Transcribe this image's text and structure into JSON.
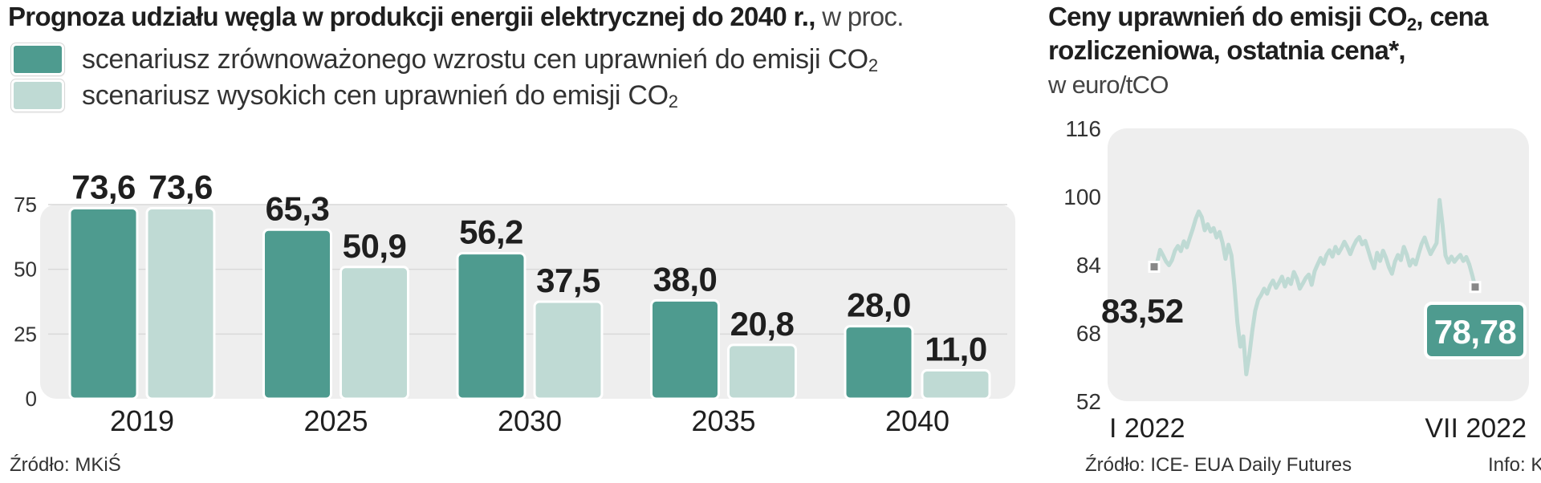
{
  "left_panel": {
    "title_bold": "Prognoza udziału węgla w produkcji energii elektrycznej do 2040 r.,",
    "title_unit": " w proc.",
    "source": "Źródło: MKiŚ"
  },
  "right_panel": {
    "title_line1_a": "Ceny uprawnień do emisji CO",
    "title_line1_sub": "2",
    "title_line1_b": ", cena",
    "title_line2": "rozliczeniowa, ostatnia cena*,",
    "unit": "w euro/tCO",
    "source": "Źródło: ICE- EUA Daily Futures",
    "credit": "Info: K"
  },
  "colors": {
    "series_dark": "#4e9b8f",
    "series_light": "#bfdad4",
    "plot_bg": "#eeeeee",
    "line_color": "#bfdad4",
    "last_label_bg": "#4e9b8f"
  },
  "chart_data": [
    {
      "type": "bar",
      "categories": [
        "2019",
        "2025",
        "2030",
        "2035",
        "2040"
      ],
      "series": [
        {
          "name": "scenariusz zrównoważonego wzrostu cen uprawnień do emisji CO2",
          "values": [
            73.6,
            65.3,
            56.2,
            38.0,
            28.0
          ],
          "labels": [
            "73,6",
            "65,3",
            "56,2",
            "38,0",
            "28,0"
          ]
        },
        {
          "name": "scenariusz wysokich cen uprawnień do emisji CO2",
          "values": [
            73.6,
            50.9,
            37.5,
            20.8,
            11.0
          ],
          "labels": [
            "73,6",
            "50,9",
            "37,5",
            "20,8",
            "11,0"
          ]
        }
      ],
      "legend": [
        {
          "text": "scenariusz zrównoważonego wzrostu cen uprawnień do emisji CO",
          "sub": "2"
        },
        {
          "text": "scenariusz wysokich cen uprawnień do emisji CO",
          "sub": "2"
        }
      ],
      "yticks": [
        "0",
        "25",
        "50",
        "75"
      ],
      "ytick_values": [
        0,
        25,
        50,
        75
      ],
      "ylim": [
        0,
        75
      ],
      "grid": true,
      "legend_position": "top-left"
    },
    {
      "type": "line",
      "ylim": [
        52,
        116
      ],
      "yticks": [
        "52",
        "68",
        "84",
        "100",
        "116"
      ],
      "ytick_values": [
        52,
        68,
        84,
        100,
        116
      ],
      "xticks": [
        "I 2022",
        "VII 2022"
      ],
      "first_label": "83,52",
      "last_label": "78,78",
      "first_value": 83.52,
      "last_value": 78.78,
      "grid": false,
      "values": [
        83.52,
        84.5,
        87.5,
        86.2,
        84.8,
        83.9,
        85.1,
        87.3,
        88.4,
        87.2,
        89.5,
        88.1,
        90.3,
        92.4,
        94.8,
        96.5,
        95.2,
        92.1,
        93.5,
        91.8,
        92.6,
        90.4,
        91.7,
        89.2,
        85.4,
        88.7,
        86.2,
        79.3,
        70.5,
        64.8,
        67.2,
        58.3,
        62.7,
        68.4,
        73.2,
        75.8,
        76.9,
        78.4,
        77.2,
        79.1,
        80.3,
        78.6,
        79.8,
        81.2,
        78.9,
        80.7,
        79.5,
        82.3,
        80.8,
        78.4,
        79.6,
        80.9,
        81.7,
        79.3,
        82.5,
        84.1,
        85.6,
        84.2,
        86.3,
        87.4,
        85.9,
        88.2,
        86.7,
        87.9,
        89.4,
        88.1,
        86.5,
        88.3,
        89.7,
        90.5,
        88.8,
        89.6,
        87.4,
        85.1,
        83.2,
        86.8,
        84.9,
        87.3,
        85.6,
        83.4,
        81.9,
        84.7,
        86.3,
        85.1,
        88.2,
        86.4,
        83.8,
        85.2,
        84.1,
        86.6,
        88.9,
        90.4,
        88.3,
        86.5,
        87.8,
        89.1,
        99.2,
        93.4,
        86.2,
        84.5,
        85.9,
        84.7,
        85.6,
        86.3,
        84.9,
        85.8,
        84.1,
        81.6,
        78.78
      ]
    }
  ]
}
